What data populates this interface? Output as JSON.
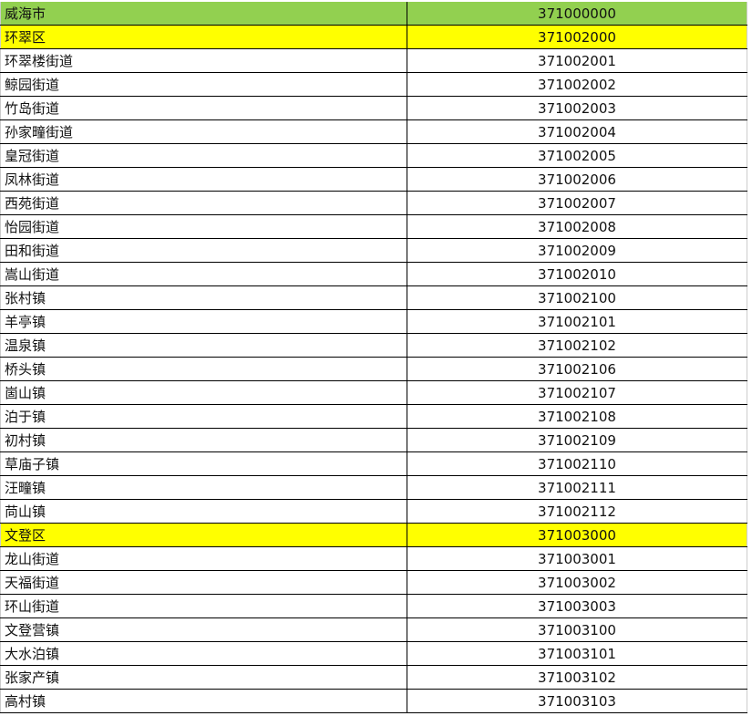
{
  "rows": [
    {
      "name": "威海市",
      "code": "371000000",
      "level": "city",
      "fill": "#92d050"
    },
    {
      "name": "环翠区",
      "code": "371002000",
      "level": "district",
      "fill": "#ffff00"
    },
    {
      "name": "环翠楼街道",
      "code": "371002001"
    },
    {
      "name": "鲸园街道",
      "code": "371002002"
    },
    {
      "name": "竹岛街道",
      "code": "371002003"
    },
    {
      "name": "孙家疃街道",
      "code": "371002004"
    },
    {
      "name": "皇冠街道",
      "code": "371002005"
    },
    {
      "name": "凤林街道",
      "code": "371002006"
    },
    {
      "name": "西苑街道",
      "code": "371002007"
    },
    {
      "name": "怡园街道",
      "code": "371002008"
    },
    {
      "name": "田和街道",
      "code": "371002009"
    },
    {
      "name": "嵩山街道",
      "code": "371002010"
    },
    {
      "name": "张村镇",
      "code": "371002100"
    },
    {
      "name": "羊亭镇",
      "code": "371002101"
    },
    {
      "name": "温泉镇",
      "code": "371002102"
    },
    {
      "name": "桥头镇",
      "code": "371002106"
    },
    {
      "name": "崮山镇",
      "code": "371002107"
    },
    {
      "name": "泊于镇",
      "code": "371002108"
    },
    {
      "name": "初村镇",
      "code": "371002109"
    },
    {
      "name": "草庙子镇",
      "code": "371002110"
    },
    {
      "name": "汪疃镇",
      "code": "371002111"
    },
    {
      "name": "苘山镇",
      "code": "371002112"
    },
    {
      "name": "文登区",
      "code": "371003000",
      "level": "district",
      "fill": "#ffff00"
    },
    {
      "name": "龙山街道",
      "code": "371003001"
    },
    {
      "name": "天福街道",
      "code": "371003002"
    },
    {
      "name": "环山街道",
      "code": "371003003"
    },
    {
      "name": "文登营镇",
      "code": "371003100"
    },
    {
      "name": "大水泊镇",
      "code": "371003101"
    },
    {
      "name": "张家产镇",
      "code": "371003102"
    },
    {
      "name": "高村镇",
      "code": "371003103"
    }
  ]
}
